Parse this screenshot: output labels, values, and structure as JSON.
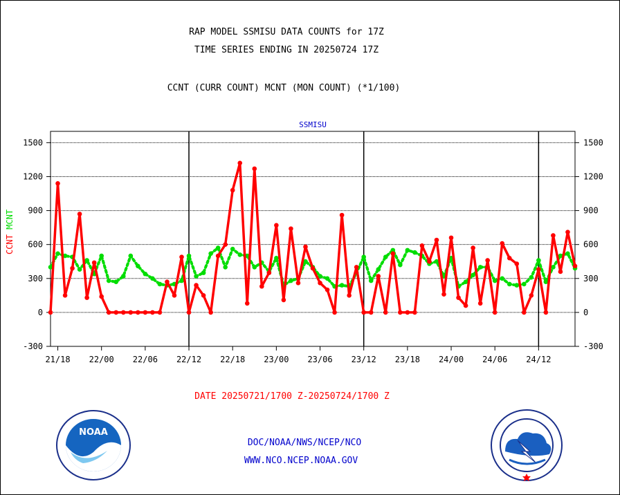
{
  "titles": {
    "line1": "RAP MODEL SSMISU DATA COUNTS for 17Z",
    "line2": "TIME SERIES ENDING IN 20250724 17Z",
    "line3": "CCNT (CURR COUNT) MCNT (MON COUNT) (*1/100)"
  },
  "footer": {
    "date_range": "DATE 20250721/1700 Z-20250724/1700 Z",
    "org": "DOC/NOAA/NWS/NCEP/NCO",
    "url": "WWW.NCO.NCEP.NOAA.GOV"
  },
  "logos": {
    "left": {
      "icon": "noaa-logo",
      "text": "NOAA"
    },
    "right": {
      "icon": "nws-logo"
    }
  },
  "chart_data": {
    "type": "line",
    "title": "SSMISU",
    "ylabel_parts": [
      {
        "text": "CCNT",
        "color": "#ff0000"
      },
      {
        "text": "MCNT",
        "color": "#00dd00"
      }
    ],
    "ylim": [
      -300,
      1600
    ],
    "yticks": [
      -300,
      0,
      300,
      600,
      900,
      1200,
      1500
    ],
    "grid": true,
    "x_tick_labels": [
      "21/18",
      "22/00",
      "22/06",
      "22/12",
      "22/18",
      "23/00",
      "23/06",
      "23/12",
      "23/18",
      "24/00",
      "24/06",
      "24/12"
    ],
    "x_tick_hours": [
      1,
      7,
      13,
      19,
      25,
      31,
      37,
      43,
      49,
      55,
      61,
      67
    ],
    "day_boundaries_hours": [
      19,
      43,
      67
    ],
    "x_range_hours": [
      0,
      72
    ],
    "series": [
      {
        "name": "CCNT",
        "color": "#ff0000",
        "style": "solid",
        "values": [
          0,
          1140,
          150,
          390,
          870,
          130,
          440,
          140,
          0,
          0,
          0,
          0,
          0,
          0,
          0,
          0,
          270,
          150,
          490,
          0,
          240,
          150,
          0,
          500,
          600,
          1080,
          1320,
          80,
          1270,
          230,
          350,
          770,
          110,
          740,
          260,
          580,
          390,
          260,
          200,
          0,
          860,
          150,
          400,
          0,
          0,
          320,
          0,
          520,
          0,
          0,
          0,
          590,
          450,
          640,
          160,
          660,
          130,
          60,
          570,
          80,
          460,
          0,
          610,
          480,
          430,
          0,
          150,
          380,
          0,
          680,
          360,
          710,
          410
        ]
      },
      {
        "name": "MCNT",
        "color": "#00dd00",
        "style": "dotted",
        "values": [
          400,
          520,
          500,
          490,
          380,
          460,
          340,
          500,
          280,
          270,
          320,
          500,
          410,
          340,
          300,
          250,
          240,
          250,
          280,
          500,
          320,
          350,
          520,
          570,
          400,
          560,
          510,
          500,
          400,
          440,
          360,
          480,
          240,
          280,
          300,
          450,
          400,
          320,
          300,
          230,
          240,
          230,
          350,
          490,
          280,
          380,
          490,
          550,
          420,
          550,
          530,
          500,
          430,
          450,
          320,
          480,
          230,
          270,
          330,
          400,
          400,
          280,
          300,
          250,
          240,
          250,
          310,
          460,
          270,
          400,
          500,
          520,
          390
        ]
      }
    ]
  }
}
